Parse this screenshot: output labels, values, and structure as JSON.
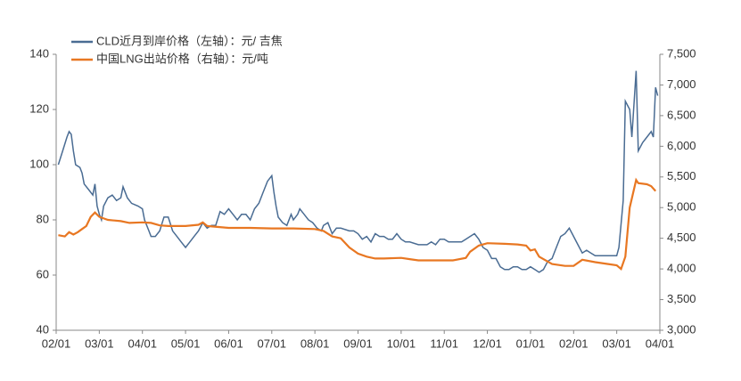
{
  "chart_data": {
    "type": "line",
    "legend": "top-left",
    "xlim": [
      0,
      14
    ],
    "xticks": [
      {
        "value": 0,
        "label": "02/01"
      },
      {
        "value": 1,
        "label": "03/01"
      },
      {
        "value": 2,
        "label": "04/01"
      },
      {
        "value": 3,
        "label": "05/01"
      },
      {
        "value": 4,
        "label": "06/01"
      },
      {
        "value": 5,
        "label": "07/01"
      },
      {
        "value": 6,
        "label": "08/01"
      },
      {
        "value": 7,
        "label": "09/01"
      },
      {
        "value": 8,
        "label": "10/01"
      },
      {
        "value": 9,
        "label": "11/01"
      },
      {
        "value": 10,
        "label": "12/01"
      },
      {
        "value": 11,
        "label": "01/01"
      },
      {
        "value": 12,
        "label": "02/01"
      },
      {
        "value": 13,
        "label": "03/01"
      },
      {
        "value": 14,
        "label": "04/01"
      }
    ],
    "ylim": [
      40,
      140
    ],
    "yticks": [
      40,
      60,
      80,
      100,
      120,
      140
    ],
    "y2lim": [
      3000,
      7500
    ],
    "y2ticks": [
      {
        "value": 3000,
        "label": "3,000"
      },
      {
        "value": 3500,
        "label": "3,500"
      },
      {
        "value": 4000,
        "label": "4,000"
      },
      {
        "value": 4500,
        "label": "4,500"
      },
      {
        "value": 5000,
        "label": "5,000"
      },
      {
        "value": 5500,
        "label": "5,500"
      },
      {
        "value": 6000,
        "label": "6,000"
      },
      {
        "value": 6500,
        "label": "6,500"
      },
      {
        "value": 7000,
        "label": "7,000"
      },
      {
        "value": 7500,
        "label": "7,500"
      }
    ],
    "series": [
      {
        "name": "CLD近月到岸价格（左轴）：元/ 吉焦",
        "color": "#4a6c93",
        "axis": "y",
        "x": [
          0.05,
          0.15,
          0.25,
          0.3,
          0.35,
          0.4,
          0.45,
          0.55,
          0.6,
          0.65,
          0.75,
          0.85,
          0.9,
          0.95,
          1.0,
          1.05,
          1.1,
          1.2,
          1.3,
          1.4,
          1.5,
          1.55,
          1.65,
          1.75,
          1.9,
          2.0,
          2.05,
          2.15,
          2.2,
          2.3,
          2.4,
          2.5,
          2.6,
          2.7,
          2.8,
          2.9,
          3.0,
          3.1,
          3.2,
          3.3,
          3.4,
          3.5,
          3.6,
          3.7,
          3.8,
          3.9,
          4.0,
          4.1,
          4.2,
          4.3,
          4.4,
          4.5,
          4.6,
          4.7,
          4.8,
          4.9,
          5.0,
          5.05,
          5.1,
          5.15,
          5.25,
          5.35,
          5.45,
          5.5,
          5.6,
          5.65,
          5.75,
          5.85,
          5.95,
          6.05,
          6.15,
          6.2,
          6.3,
          6.4,
          6.5,
          6.6,
          6.8,
          6.9,
          7.0,
          7.1,
          7.2,
          7.3,
          7.4,
          7.5,
          7.6,
          7.7,
          7.8,
          7.9,
          8.0,
          8.1,
          8.2,
          8.4,
          8.6,
          8.7,
          8.8,
          8.9,
          9.0,
          9.1,
          9.2,
          9.4,
          9.5,
          9.6,
          9.7,
          9.8,
          9.9,
          10.0,
          10.1,
          10.2,
          10.3,
          10.4,
          10.5,
          10.6,
          10.7,
          10.8,
          10.9,
          11.0,
          11.1,
          11.2,
          11.3,
          11.4,
          11.5,
          11.6,
          11.7,
          11.8,
          11.9,
          12.0,
          12.1,
          12.2,
          12.3,
          12.4,
          12.5,
          12.7,
          12.9,
          13.0,
          13.05,
          13.15,
          13.2,
          13.3,
          13.35,
          13.45,
          13.5,
          13.6,
          13.7,
          13.8,
          13.85,
          13.9,
          13.95
        ],
        "values": [
          100,
          105,
          110,
          112,
          111,
          105,
          100,
          99,
          97,
          93,
          91,
          89,
          93,
          85,
          82,
          80,
          85,
          88,
          89,
          87,
          88,
          92,
          88,
          86,
          85,
          84,
          80,
          76,
          74,
          74,
          76,
          81,
          81,
          76,
          74,
          72,
          70,
          72,
          74,
          76,
          79,
          77,
          78,
          78,
          83,
          82,
          84,
          82,
          80,
          82,
          82,
          80,
          84,
          86,
          90,
          94,
          96,
          90,
          85,
          81,
          79,
          78,
          82,
          80,
          82,
          84,
          82,
          80,
          79,
          77,
          76,
          78,
          79,
          75,
          77,
          77,
          76,
          76,
          75,
          73,
          74,
          72,
          75,
          74,
          74,
          73,
          73,
          75,
          73,
          72,
          72,
          71,
          71,
          72,
          71,
          73,
          73,
          72,
          72,
          72,
          73,
          74,
          75,
          73,
          70,
          69,
          66,
          66,
          63,
          62,
          62,
          63,
          63,
          62,
          62,
          63,
          62,
          61,
          62,
          65,
          66,
          70,
          74,
          75,
          77,
          74,
          71,
          68,
          69,
          68,
          67,
          67,
          67,
          67,
          70,
          87,
          123,
          120,
          110,
          134,
          105,
          108,
          110,
          112,
          110,
          128,
          125
        ]
      },
      {
        "name": "中国LNG出站价格（右轴）：元/吨",
        "color": "#e87722",
        "axis": "y2",
        "x": [
          0.05,
          0.2,
          0.3,
          0.4,
          0.5,
          0.6,
          0.7,
          0.8,
          0.9,
          1.0,
          1.2,
          1.5,
          1.7,
          2.0,
          2.2,
          2.4,
          2.6,
          3.0,
          3.3,
          3.4,
          3.5,
          4.0,
          4.5,
          5.0,
          5.5,
          6.0,
          6.2,
          6.4,
          6.6,
          6.8,
          7.0,
          7.2,
          7.4,
          7.6,
          8.0,
          8.2,
          8.4,
          8.8,
          9.2,
          9.5,
          9.6,
          9.8,
          10.0,
          10.4,
          10.7,
          10.9,
          11.0,
          11.1,
          11.2,
          11.5,
          11.8,
          12.0,
          12.2,
          12.5,
          12.8,
          13.0,
          13.1,
          13.2,
          13.3,
          13.45,
          13.5,
          13.7,
          13.8,
          13.9
        ],
        "values": [
          4550,
          4530,
          4600,
          4560,
          4600,
          4650,
          4700,
          4850,
          4920,
          4850,
          4800,
          4780,
          4750,
          4760,
          4750,
          4710,
          4700,
          4700,
          4720,
          4760,
          4700,
          4670,
          4670,
          4660,
          4660,
          4650,
          4620,
          4530,
          4500,
          4350,
          4250,
          4200,
          4170,
          4170,
          4180,
          4160,
          4140,
          4140,
          4140,
          4180,
          4280,
          4380,
          4420,
          4410,
          4400,
          4380,
          4300,
          4320,
          4200,
          4080,
          4050,
          4050,
          4150,
          4110,
          4080,
          4060,
          4000,
          4200,
          5000,
          5450,
          5400,
          5380,
          5350,
          5270
        ]
      }
    ]
  }
}
